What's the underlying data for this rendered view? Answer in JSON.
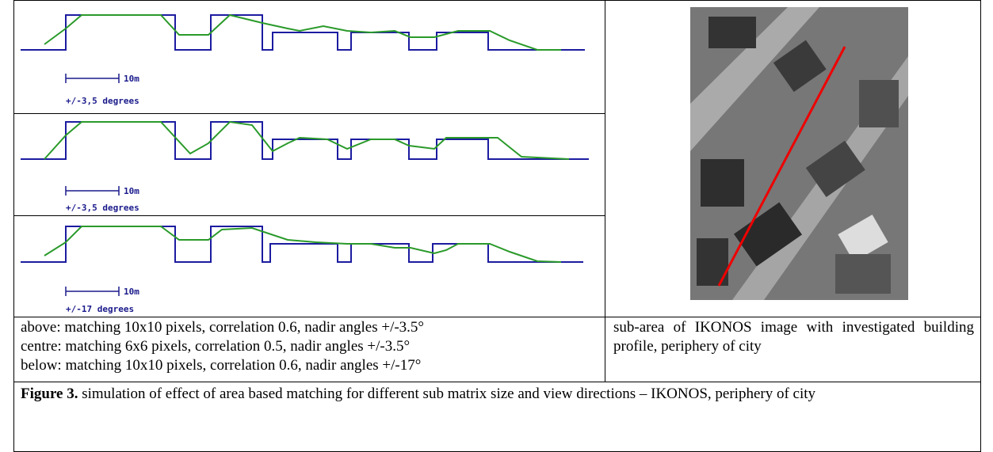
{
  "panels": [
    {
      "scale": "10m",
      "angle": "+/-3,5 degrees"
    },
    {
      "scale": "10m",
      "angle": "+/-3,5 degrees"
    },
    {
      "scale": "10m",
      "angle": "+/-17 degrees"
    }
  ],
  "left_caption": [
    "above: matching 10x10 pixels, correlation 0.6, nadir angles +/-3.5°",
    "centre: matching 6x6 pixels, correlation 0.5, nadir angles +/-3.5°",
    "below: matching 10x10 pixels, correlation 0.6, nadir angles +/-17°"
  ],
  "right_caption": "sub-area of IKONOS image with investigated building profile, periphery of city",
  "figure": {
    "label": "Figure 3.",
    "text": "simulation of effect of area based matching for different sub matrix size and view directions – IKONOS, periphery of city"
  }
}
